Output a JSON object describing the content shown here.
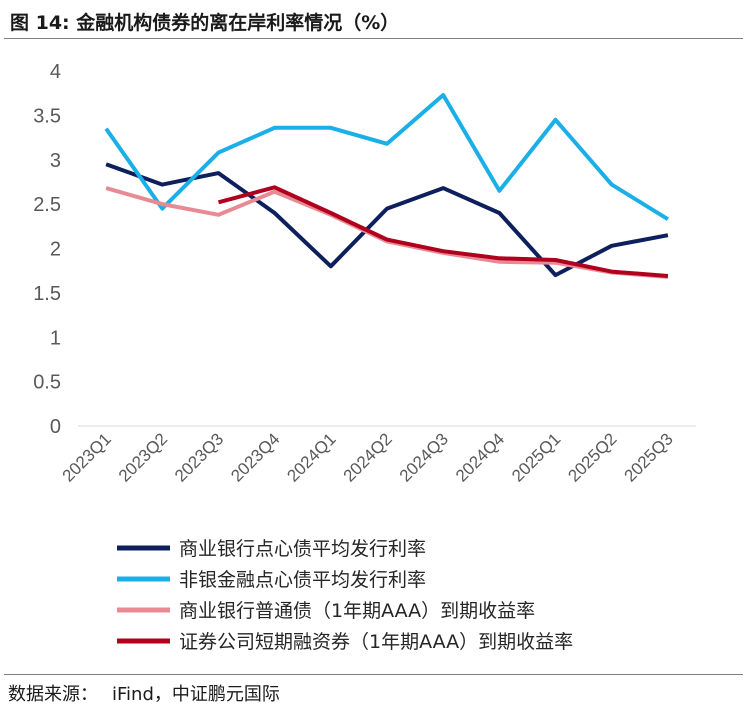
{
  "header": {
    "title": "图 14: 金融机构债券的离在岸利率情况（%）"
  },
  "source": {
    "label": "数据来源：",
    "text": "iFind，中证鹏元国际"
  },
  "chart_data": {
    "type": "line",
    "title": "",
    "xlabel": "",
    "ylabel": "",
    "ylim": [
      0,
      4
    ],
    "yticks": [
      "0",
      "0.5",
      "1",
      "1.5",
      "2",
      "2.5",
      "3",
      "3.5",
      "4"
    ],
    "categories": [
      "2023Q1",
      "2023Q2",
      "2023Q3",
      "2023Q4",
      "2024Q1",
      "2024Q2",
      "2024Q3",
      "2024Q4",
      "2025Q1",
      "2025Q2",
      "2025Q3"
    ],
    "grid": false,
    "legend_position": "bottom",
    "series": [
      {
        "name": "商业银行点心债平均发行利率",
        "color": "#0d1f5c",
        "values": [
          2.95,
          2.72,
          2.85,
          2.4,
          1.8,
          2.45,
          2.68,
          2.4,
          1.7,
          2.03,
          2.15
        ]
      },
      {
        "name": "非银金融点心债平均发行利率",
        "color": "#1bafe8",
        "values": [
          3.35,
          2.45,
          3.08,
          3.36,
          3.36,
          3.18,
          3.73,
          2.65,
          3.45,
          2.72,
          2.33
        ]
      },
      {
        "name": "商业银行普通债（1年期AAA）到期收益率",
        "color": "#e78a93",
        "values": [
          2.68,
          2.5,
          2.38,
          2.64,
          2.38,
          2.08,
          1.95,
          1.85,
          1.84,
          1.73,
          1.68
        ]
      },
      {
        "name": "证券公司短期融资券（1年期AAA）到期收益率",
        "color": "#b0001d",
        "values": [
          null,
          null,
          2.52,
          2.69,
          2.4,
          2.1,
          1.97,
          1.89,
          1.87,
          1.74,
          1.69
        ]
      }
    ]
  }
}
